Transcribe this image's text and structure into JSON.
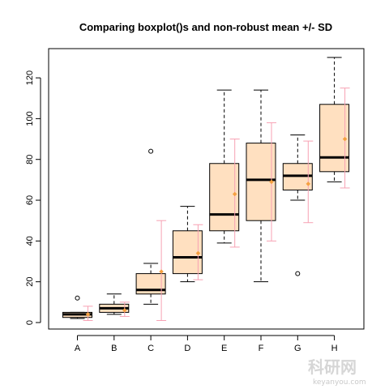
{
  "chart_data": {
    "type": "boxplot",
    "title": "Comparing boxplot()s and non-robust mean +/- SD",
    "xlabel": "",
    "ylabel": "",
    "categories": [
      "A",
      "B",
      "C",
      "D",
      "E",
      "F",
      "G",
      "H"
    ],
    "ylim": [
      -2,
      136
    ],
    "yticks": [
      0,
      20,
      40,
      60,
      80,
      100,
      120
    ],
    "boxes": [
      {
        "name": "A",
        "whisker_low": 2,
        "q1": 2.5,
        "median": 4,
        "q3": 5,
        "whisker_high": 5,
        "outliers": [
          12
        ],
        "mean": 4,
        "sd_low": 1,
        "sd_high": 8
      },
      {
        "name": "B",
        "whisker_low": 4,
        "q1": 5,
        "median": 7,
        "q3": 9,
        "whisker_high": 14,
        "outliers": [],
        "mean": 6,
        "sd_low": 3,
        "sd_high": 10
      },
      {
        "name": "C",
        "whisker_low": 9,
        "q1": 14,
        "median": 16,
        "q3": 24,
        "whisker_high": 29,
        "outliers": [
          84
        ],
        "mean": 25,
        "sd_low": 1,
        "sd_high": 50
      },
      {
        "name": "D",
        "whisker_low": 20,
        "q1": 24,
        "median": 32,
        "q3": 45,
        "whisker_high": 57,
        "outliers": [],
        "mean": 34,
        "sd_low": 21,
        "sd_high": 48
      },
      {
        "name": "E",
        "whisker_low": 39,
        "q1": 45,
        "median": 53,
        "q3": 78,
        "whisker_high": 114,
        "outliers": [],
        "mean": 63,
        "sd_low": 37,
        "sd_high": 90
      },
      {
        "name": "F",
        "whisker_low": 20,
        "q1": 50,
        "median": 70,
        "q3": 88,
        "whisker_high": 114,
        "outliers": [],
        "mean": 69,
        "sd_low": 40,
        "sd_high": 98
      },
      {
        "name": "G",
        "whisker_low": 60,
        "q1": 65,
        "median": 72,
        "q3": 78,
        "whisker_high": 92,
        "outliers": [
          24
        ],
        "mean": 68,
        "sd_low": 49,
        "sd_high": 89
      },
      {
        "name": "H",
        "whisker_low": 69,
        "q1": 74,
        "median": 81,
        "q3": 107,
        "whisker_high": 130,
        "outliers": [],
        "mean": 90,
        "sd_low": 66,
        "sd_high": 115
      }
    ],
    "grid": false,
    "legend": "none",
    "colors": {
      "box_fill": "#ffe0c0",
      "box_stroke": "#000000",
      "sd_bar": "#f7a1b3",
      "mean_marker": "#f5a040",
      "axis": "#000000"
    }
  },
  "watermark": {
    "text": "keyanyou.com",
    "logo": "科研网"
  }
}
